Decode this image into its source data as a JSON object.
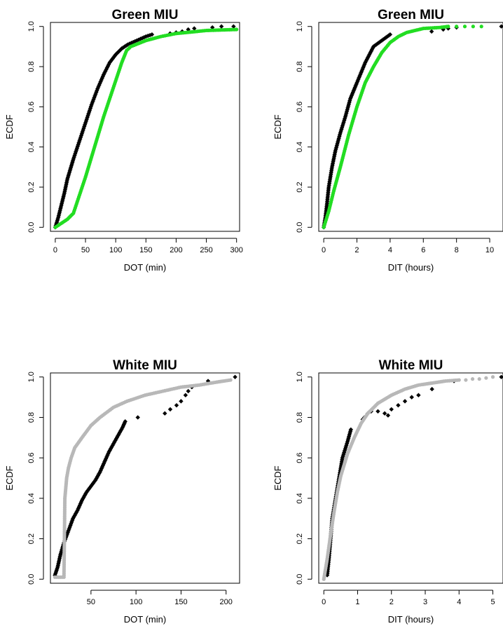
{
  "chart_data": [
    {
      "type": "scatter",
      "title": "Green MIU",
      "xlabel": "DOT (min)",
      "ylabel": "ECDF",
      "xlim": [
        -8,
        305
      ],
      "ylim": [
        -0.02,
        1.02
      ],
      "xticks": [
        0,
        50,
        100,
        150,
        200,
        250,
        300
      ],
      "yticks": [
        0.0,
        0.2,
        0.4,
        0.6,
        0.8,
        1.0
      ],
      "grid": false,
      "series": [
        {
          "color": "#000000",
          "marker": "diamond",
          "curve": [
            [
              0,
              0.0
            ],
            [
              5,
              0.05
            ],
            [
              10,
              0.11
            ],
            [
              15,
              0.17
            ],
            [
              20,
              0.24
            ],
            [
              30,
              0.34
            ],
            [
              40,
              0.43
            ],
            [
              50,
              0.52
            ],
            [
              60,
              0.61
            ],
            [
              70,
              0.69
            ],
            [
              80,
              0.76
            ],
            [
              90,
              0.82
            ],
            [
              100,
              0.86
            ],
            [
              110,
              0.89
            ],
            [
              120,
              0.91
            ],
            [
              135,
              0.93
            ],
            [
              150,
              0.95
            ],
            [
              160,
              0.96
            ]
          ],
          "points": [
            [
              190,
              0.965
            ],
            [
              200,
              0.97
            ],
            [
              210,
              0.975
            ],
            [
              220,
              0.985
            ],
            [
              230,
              0.99
            ],
            [
              260,
              0.995
            ],
            [
              275,
              1.0
            ],
            [
              295,
              1.0
            ]
          ]
        },
        {
          "color": "#22dd22",
          "marker": "circle",
          "curve": [
            [
              0,
              0.0
            ],
            [
              10,
              0.02
            ],
            [
              20,
              0.04
            ],
            [
              30,
              0.07
            ],
            [
              40,
              0.16
            ],
            [
              50,
              0.25
            ],
            [
              60,
              0.35
            ],
            [
              70,
              0.45
            ],
            [
              80,
              0.55
            ],
            [
              90,
              0.64
            ],
            [
              100,
              0.73
            ],
            [
              110,
              0.82
            ],
            [
              118,
              0.88
            ],
            [
              125,
              0.9
            ],
            [
              150,
              0.93
            ],
            [
              175,
              0.95
            ],
            [
              200,
              0.965
            ],
            [
              250,
              0.98
            ],
            [
              300,
              0.985
            ]
          ],
          "points": []
        }
      ]
    },
    {
      "type": "scatter",
      "title": "Green MIU",
      "xlabel": "DIT (hours)",
      "ylabel": "ECDF",
      "xlim": [
        -0.3,
        10.8
      ],
      "ylim": [
        -0.02,
        1.02
      ],
      "xticks": [
        0,
        2,
        4,
        6,
        8,
        10
      ],
      "yticks": [
        0.0,
        0.2,
        0.4,
        0.6,
        0.8,
        1.0
      ],
      "grid": false,
      "series": [
        {
          "color": "#000000",
          "marker": "diamond",
          "curve": [
            [
              0,
              0.0
            ],
            [
              0.1,
              0.05
            ],
            [
              0.2,
              0.12
            ],
            [
              0.3,
              0.2
            ],
            [
              0.5,
              0.3
            ],
            [
              0.7,
              0.38
            ],
            [
              1.0,
              0.47
            ],
            [
              1.3,
              0.55
            ],
            [
              1.6,
              0.64
            ],
            [
              2.0,
              0.72
            ],
            [
              2.5,
              0.82
            ],
            [
              3.0,
              0.9
            ],
            [
              3.5,
              0.93
            ],
            [
              4.0,
              0.96
            ]
          ],
          "points": [
            [
              6.5,
              0.975
            ],
            [
              7.2,
              0.985
            ],
            [
              7.5,
              0.99
            ],
            [
              8.0,
              0.995
            ],
            [
              10.7,
              1.0
            ]
          ]
        },
        {
          "color": "#22dd22",
          "marker": "circle",
          "curve": [
            [
              0,
              0.0
            ],
            [
              0.3,
              0.08
            ],
            [
              0.6,
              0.18
            ],
            [
              1.0,
              0.3
            ],
            [
              1.5,
              0.46
            ],
            [
              2.0,
              0.6
            ],
            [
              2.5,
              0.72
            ],
            [
              3.0,
              0.8
            ],
            [
              3.5,
              0.87
            ],
            [
              4.0,
              0.92
            ],
            [
              4.5,
              0.95
            ],
            [
              5.0,
              0.97
            ],
            [
              5.5,
              0.98
            ],
            [
              6.0,
              0.99
            ],
            [
              7.0,
              0.995
            ],
            [
              7.5,
              1.0
            ]
          ],
          "points": [
            [
              8.0,
              1.0
            ],
            [
              8.5,
              1.0
            ],
            [
              9.0,
              1.0
            ],
            [
              9.5,
              1.0
            ]
          ]
        }
      ]
    },
    {
      "type": "scatter",
      "title": "White MIU",
      "xlabel": "DOT (min)",
      "ylabel": "ECDF",
      "xlim": [
        5,
        215
      ],
      "ylim": [
        -0.02,
        1.02
      ],
      "xticks": [
        50,
        100,
        150,
        200
      ],
      "yticks": [
        0.0,
        0.2,
        0.4,
        0.6,
        0.8,
        1.0
      ],
      "grid": false,
      "series": [
        {
          "color": "#000000",
          "marker": "diamond",
          "curve": [
            [
              10,
              0.02
            ],
            [
              13,
              0.06
            ],
            [
              16,
              0.12
            ],
            [
              20,
              0.18
            ],
            [
              25,
              0.24
            ],
            [
              30,
              0.3
            ],
            [
              35,
              0.34
            ],
            [
              40,
              0.39
            ],
            [
              45,
              0.43
            ],
            [
              50,
              0.46
            ],
            [
              55,
              0.49
            ],
            [
              60,
              0.53
            ],
            [
              65,
              0.58
            ],
            [
              70,
              0.63
            ],
            [
              75,
              0.67
            ],
            [
              80,
              0.71
            ],
            [
              85,
              0.75
            ],
            [
              88,
              0.78
            ]
          ],
          "points": [
            [
              102,
              0.8
            ],
            [
              132,
              0.82
            ],
            [
              138,
              0.84
            ],
            [
              145,
              0.86
            ],
            [
              150,
              0.88
            ],
            [
              155,
              0.91
            ],
            [
              158,
              0.93
            ],
            [
              162,
              0.95
            ],
            [
              180,
              0.98
            ],
            [
              210,
              1.0
            ]
          ]
        },
        {
          "color": "#b8b8b8",
          "marker": "circle",
          "curve": [
            [
              10,
              0.01
            ],
            [
              20,
              0.01
            ],
            [
              20.5,
              0.2
            ],
            [
              21,
              0.4
            ],
            [
              22,
              0.45
            ],
            [
              23,
              0.5
            ],
            [
              25,
              0.55
            ],
            [
              28,
              0.6
            ],
            [
              32,
              0.65
            ],
            [
              40,
              0.7
            ],
            [
              50,
              0.76
            ],
            [
              60,
              0.8
            ],
            [
              75,
              0.85
            ],
            [
              90,
              0.88
            ],
            [
              110,
              0.91
            ],
            [
              130,
              0.93
            ],
            [
              150,
              0.95
            ],
            [
              170,
              0.96
            ],
            [
              190,
              0.975
            ],
            [
              205,
              0.985
            ]
          ],
          "points": []
        }
      ]
    },
    {
      "type": "scatter",
      "title": "White MIU",
      "xlabel": "DIT (hours)",
      "ylabel": "ECDF",
      "xlim": [
        -0.15,
        5.3
      ],
      "ylim": [
        -0.02,
        1.02
      ],
      "xticks": [
        0,
        1,
        2,
        3,
        4,
        5
      ],
      "yticks": [
        0.0,
        0.2,
        0.4,
        0.6,
        0.8,
        1.0
      ],
      "grid": false,
      "series": [
        {
          "color": "#000000",
          "marker": "diamond",
          "curve": [
            [
              0.1,
              0.02
            ],
            [
              0.15,
              0.1
            ],
            [
              0.2,
              0.2
            ],
            [
              0.25,
              0.3
            ],
            [
              0.35,
              0.4
            ],
            [
              0.45,
              0.5
            ],
            [
              0.55,
              0.6
            ],
            [
              0.7,
              0.68
            ],
            [
              0.8,
              0.74
            ]
          ],
          "points": [
            [
              1.15,
              0.79
            ],
            [
              1.2,
              0.8
            ],
            [
              1.3,
              0.82
            ],
            [
              1.4,
              0.83
            ],
            [
              1.6,
              0.83
            ],
            [
              1.8,
              0.82
            ],
            [
              1.9,
              0.81
            ],
            [
              2.0,
              0.84
            ],
            [
              2.2,
              0.86
            ],
            [
              2.4,
              0.88
            ],
            [
              2.6,
              0.9
            ],
            [
              2.8,
              0.91
            ],
            [
              3.2,
              0.94
            ],
            [
              3.85,
              0.98
            ],
            [
              5.25,
              1.0
            ]
          ]
        },
        {
          "color": "#b8b8b8",
          "marker": "circle",
          "curve": [
            [
              0,
              0.0
            ],
            [
              0.1,
              0.1
            ],
            [
              0.2,
              0.22
            ],
            [
              0.3,
              0.33
            ],
            [
              0.4,
              0.43
            ],
            [
              0.5,
              0.51
            ],
            [
              0.7,
              0.62
            ],
            [
              0.9,
              0.7
            ],
            [
              1.1,
              0.77
            ],
            [
              1.3,
              0.82
            ],
            [
              1.6,
              0.87
            ],
            [
              2.0,
              0.91
            ],
            [
              2.4,
              0.94
            ],
            [
              2.8,
              0.96
            ],
            [
              3.2,
              0.97
            ],
            [
              3.6,
              0.98
            ],
            [
              4.0,
              0.985
            ]
          ],
          "points": [
            [
              4.2,
              0.985
            ],
            [
              4.4,
              0.99
            ],
            [
              4.6,
              0.99
            ],
            [
              4.8,
              0.995
            ],
            [
              5.0,
              1.0
            ]
          ]
        }
      ]
    }
  ]
}
